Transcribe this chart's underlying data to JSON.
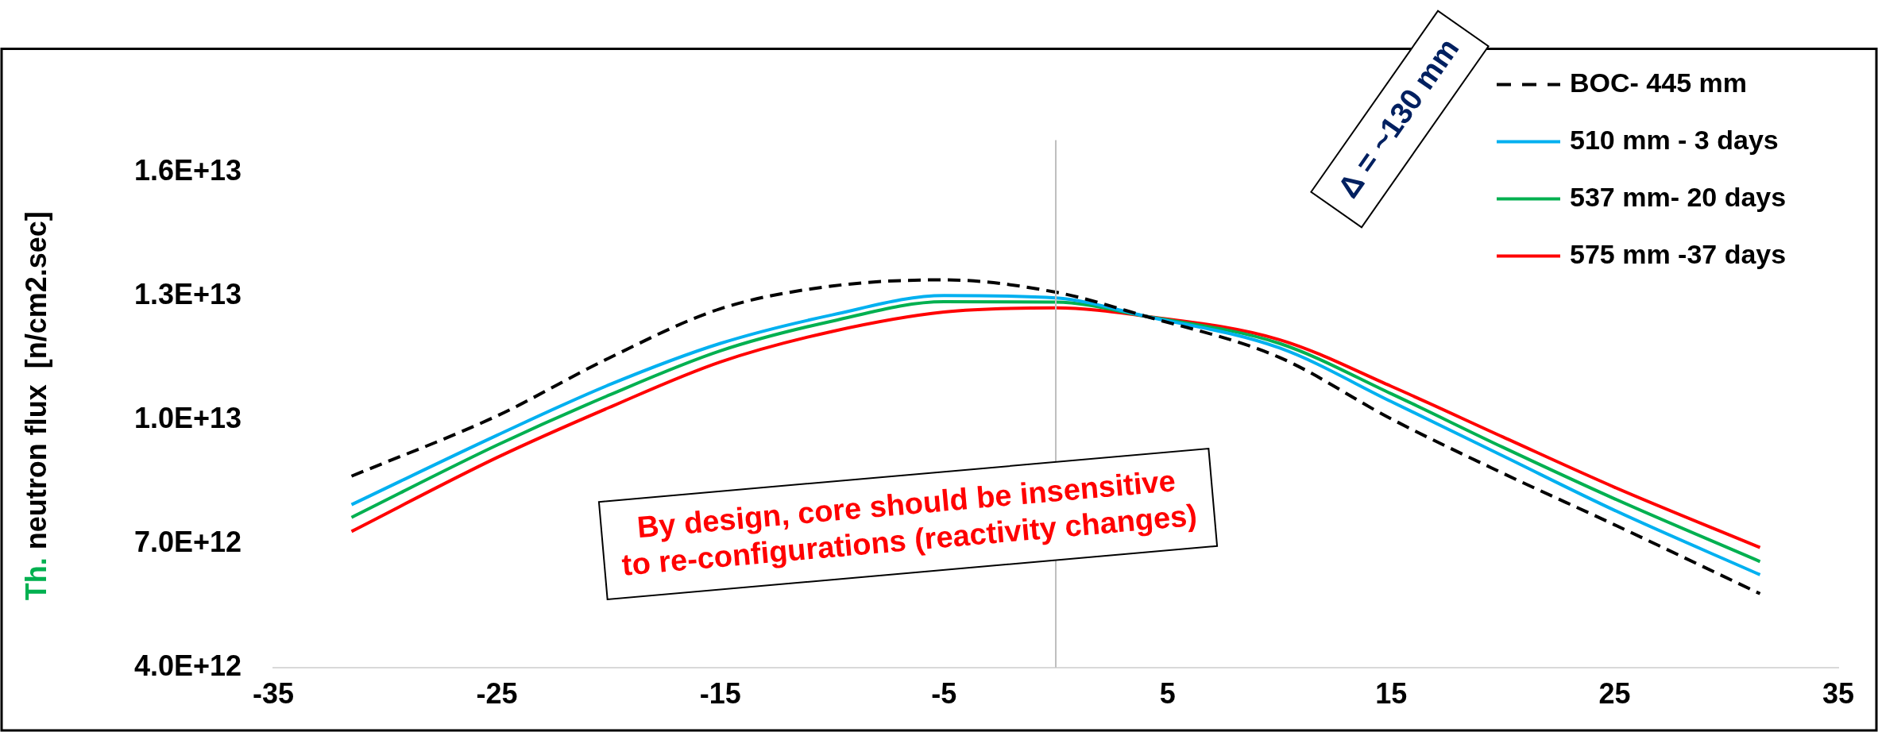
{
  "chart_data": {
    "type": "line",
    "ylabel": "Th. neutron flux  [n/cm2.sec]",
    "x": [
      -31.5,
      -25,
      -20,
      -15,
      -10,
      -5,
      0,
      4,
      10,
      15,
      20,
      25,
      31.5
    ],
    "xlim": [
      -35,
      35
    ],
    "xticks": [
      -35,
      -25,
      -15,
      -5,
      5,
      15,
      25,
      35
    ],
    "ylim": [
      4000000000000.0,
      19000000000000.0
    ],
    "yticks": [
      {
        "value": 4000000000000.0,
        "label": "4.0E+12"
      },
      {
        "value": 7000000000000.0,
        "label": "7.0E+12"
      },
      {
        "value": 10000000000000.0,
        "label": "1.0E+13"
      },
      {
        "value": 13000000000000.0,
        "label": "1.3E+13"
      },
      {
        "value": 16000000000000.0,
        "label": "1.6E+13"
      }
    ],
    "series": [
      {
        "name": "BOC- 445 mm",
        "color": "#000000",
        "line_style": "dashed",
        "values": [
          8640000000000.0,
          10100000000000.0,
          11500000000000.0,
          12700000000000.0,
          13250000000000.0,
          13400000000000.0,
          13100000000000.0,
          12520000000000.0,
          11520000000000.0,
          10030000000000.0,
          8710000000000.0,
          7460000000000.0,
          5790000000000.0
        ]
      },
      {
        "name": "510 mm - 3 days",
        "color": "#00b0f0",
        "values": [
          7950000000000.0,
          9630000000000.0,
          10850000000000.0,
          11860000000000.0,
          12550000000000.0,
          13020000000000.0,
          12960000000000.0,
          12520000000000.0,
          11750000000000.0,
          10450000000000.0,
          9130000000000.0,
          7810000000000.0,
          6250000000000.0
        ]
      },
      {
        "name": "537 mm- 20 days",
        "color": "#00b050",
        "values": [
          7640000000000.0,
          9390000000000.0,
          10600000000000.0,
          11680000000000.0,
          12400000000000.0,
          12870000000000.0,
          12860000000000.0,
          12520000000000.0,
          11860000000000.0,
          10640000000000.0,
          9340000000000.0,
          8090000000000.0,
          6570000000000.0
        ]
      },
      {
        "name": "575 mm -37 days",
        "color": "#ff0000",
        "values": [
          7300000000000.0,
          9090000000000.0,
          10300000000000.0,
          11410000000000.0,
          12150000000000.0,
          12620000000000.0,
          12720000000000.0,
          12520000000000.0,
          11950000000000.0,
          10820000000000.0,
          9590000000000.0,
          8370000000000.0,
          6910000000000.0
        ]
      }
    ],
    "ref_lines": [
      {
        "axis": "x",
        "value": 0,
        "color": "#bfbfbf"
      }
    ],
    "annotations": [
      "Δ = ~130 mm",
      "By design, core should be insensitive\nto re-configurations (reactivity changes)"
    ],
    "legend": "top right",
    "grid": false,
    "marker": "none",
    "line_style": "solid"
  }
}
